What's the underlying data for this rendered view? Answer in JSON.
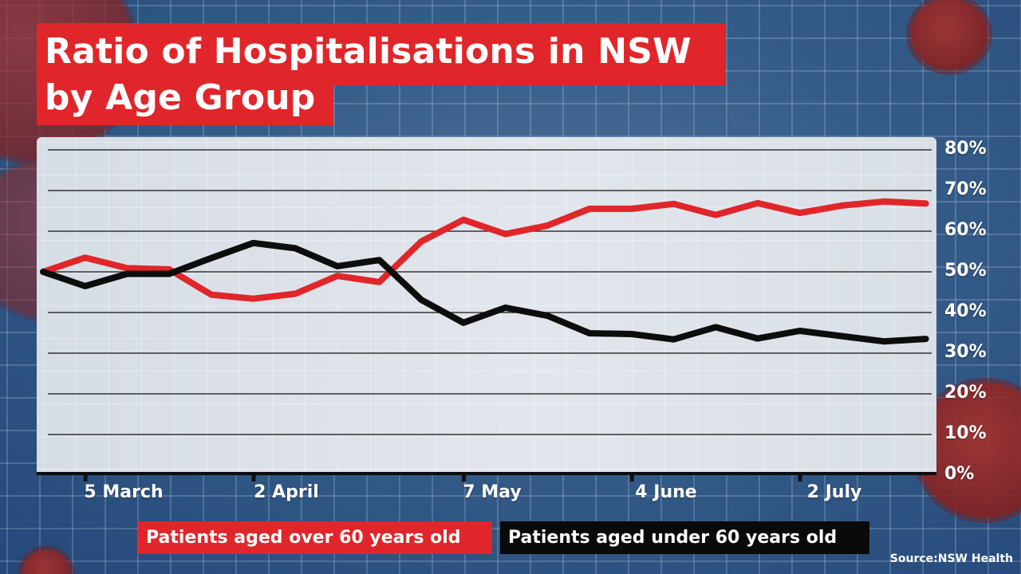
{
  "title": {
    "line1": "Ratio of Hospitalisations in NSW",
    "line2": "by Age Group"
  },
  "y_axis": {
    "ticks": [
      "80%",
      "70%",
      "60%",
      "50%",
      "40%",
      "30%",
      "20%",
      "10%",
      "0%"
    ]
  },
  "x_axis": {
    "ticks": [
      "5 March",
      "2 April",
      "7 May",
      "4 June",
      "2 July"
    ]
  },
  "legend": {
    "over60": "Patients aged over 60 years old",
    "under60": "Patients aged under 60 years old"
  },
  "source": "Source:NSW Health",
  "colors": {
    "over60": "#e0262a",
    "under60": "#0d0d0d",
    "background": "#355c88",
    "panel": "#e0e4ea"
  },
  "chart_data": {
    "type": "line",
    "title": "Ratio of Hospitalisations in NSW by Age Group",
    "xlabel": "",
    "ylabel": "",
    "ylim": [
      0,
      80
    ],
    "y_unit": "%",
    "y_axis_position": "right",
    "grid": "horizontal",
    "legend_position": "bottom",
    "x_tick_labels": [
      "5 March",
      "2 April",
      "7 May",
      "4 June",
      "2 July"
    ],
    "x_tick_indices": [
      1,
      5,
      10,
      14,
      18
    ],
    "x": [
      "26 Feb",
      "5 Mar",
      "12 Mar",
      "19 Mar",
      "26 Mar",
      "2 Apr",
      "9 Apr",
      "16 Apr",
      "23 Apr",
      "30 Apr",
      "7 May",
      "14 May",
      "21 May",
      "28 May",
      "4 Jun",
      "11 Jun",
      "18 Jun",
      "25 Jun",
      "2 Jul",
      "9 Jul",
      "16 Jul",
      "23 Jul"
    ],
    "series": [
      {
        "name": "Patients aged over 60 years old",
        "color": "#e0262a",
        "values": [
          50,
          53.5,
          50.9,
          50.6,
          44.4,
          43.4,
          44.6,
          49,
          47.5,
          57.5,
          62.8,
          59.3,
          61.4,
          65.5,
          65.5,
          66.7,
          64,
          66.9,
          64.5,
          66.3,
          67.3,
          66.8
        ]
      },
      {
        "name": "Patients aged under 60 years old",
        "color": "#0d0d0d",
        "values": [
          50,
          46.5,
          49.5,
          49.5,
          53.4,
          57.1,
          55.8,
          51.4,
          52.9,
          43.1,
          37.5,
          41.2,
          39.2,
          34.9,
          34.7,
          33.4,
          36.4,
          33.6,
          35.5,
          34.2,
          32.9,
          33.5
        ]
      }
    ]
  }
}
